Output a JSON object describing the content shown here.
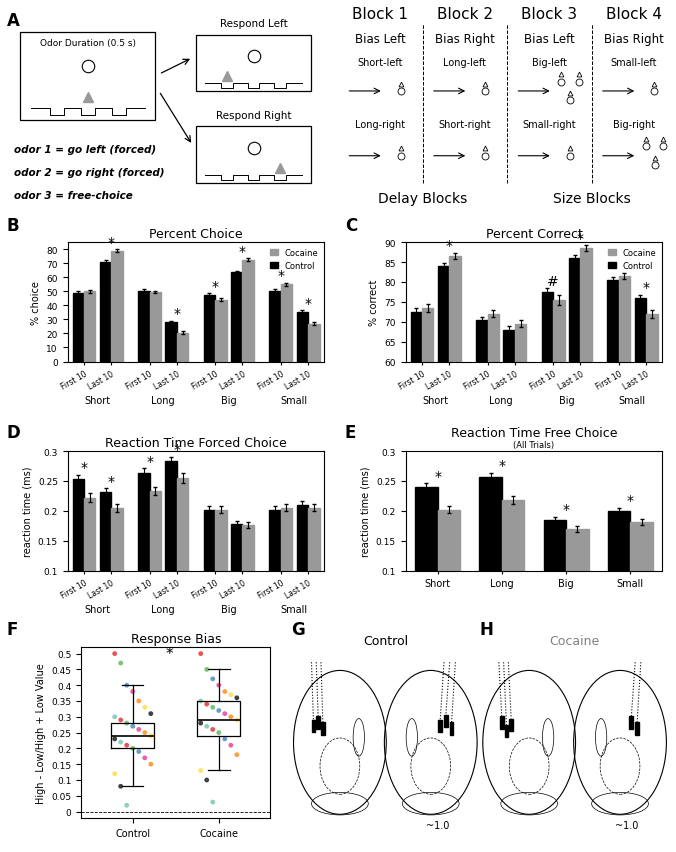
{
  "chart_data": [
    {
      "type": "bar",
      "panel_label": "B",
      "title": "Percent Choice",
      "y_label": "% choice",
      "categories": [
        "Short",
        "Long",
        "Big",
        "Small"
      ],
      "subcategories": [
        "First 10",
        "Last 10"
      ],
      "series": [
        {
          "name": "Control",
          "color": "#000000",
          "values": [
            [
              49,
              71
            ],
            [
              50.5,
              28
            ],
            [
              47.5,
              63.5
            ],
            [
              50.5,
              35.5
            ]
          ],
          "errors": [
            [
              1.2,
              1.0
            ],
            [
              1.0,
              1.0
            ],
            [
              1.0,
              1.0
            ],
            [
              1.2,
              1.0
            ]
          ]
        },
        {
          "name": "Cocaine",
          "color": "#999999",
          "values": [
            [
              50,
              79
            ],
            [
              49.5,
              20.5
            ],
            [
              44,
              72.5
            ],
            [
              55,
              27
            ]
          ],
          "errors": [
            [
              1.2,
              1.0
            ],
            [
              1.0,
              1.0
            ],
            [
              1.0,
              1.0
            ],
            [
              1.2,
              1.0
            ]
          ]
        }
      ],
      "ylim": [
        0,
        85
      ],
      "yticks": [
        0,
        10,
        20,
        30,
        40,
        50,
        60,
        70,
        80
      ],
      "legend": "upper right",
      "annotations": [
        {
          "category": "Short",
          "period": "Last 10",
          "text": "*"
        },
        {
          "category": "Long",
          "period": "Last 10",
          "text": "*"
        },
        {
          "category": "Big",
          "period": "First 10",
          "text": "*"
        },
        {
          "category": "Big",
          "period": "Last 10",
          "text": "*"
        },
        {
          "category": "Small",
          "period": "First 10",
          "text": "*"
        },
        {
          "category": "Small",
          "period": "Last 10",
          "text": "*"
        }
      ]
    },
    {
      "type": "bar",
      "panel_label": "C",
      "title": "Percent Correct",
      "y_label": "% correct",
      "categories": [
        "Short",
        "Long",
        "Big",
        "Small"
      ],
      "subcategories": [
        "First 10",
        "Last 10"
      ],
      "series": [
        {
          "name": "Control",
          "color": "#000000",
          "values": [
            [
              72.5,
              84
            ],
            [
              70.5,
              68
            ],
            [
              77.5,
              86
            ],
            [
              80.5,
              76
            ]
          ],
          "errors": [
            [
              0.9,
              0.8
            ],
            [
              0.8,
              0.8
            ],
            [
              0.9,
              0.7
            ],
            [
              0.8,
              0.8
            ]
          ]
        },
        {
          "name": "Cocaine",
          "color": "#999999",
          "values": [
            [
              73.5,
              86.5
            ],
            [
              72,
              69.5
            ],
            [
              75.5,
              88.5
            ],
            [
              81.5,
              72
            ]
          ],
          "errors": [
            [
              1.0,
              0.8
            ],
            [
              0.9,
              0.9
            ],
            [
              1.2,
              0.7
            ],
            [
              0.8,
              1.0
            ]
          ]
        }
      ],
      "ylim": [
        60,
        90
      ],
      "yticks": [
        60,
        65,
        70,
        75,
        80,
        85,
        90
      ],
      "legend": "upper right",
      "annotations": [
        {
          "category": "Short",
          "period": "Last 10",
          "text": "*"
        },
        {
          "category": "Big",
          "period": "First 10",
          "text": "#"
        },
        {
          "category": "Big",
          "period": "Last 10",
          "text": "*"
        },
        {
          "category": "Small",
          "period": "Last 10",
          "text": "*"
        }
      ]
    },
    {
      "type": "bar",
      "panel_label": "D",
      "title": "Reaction Time Forced Choice",
      "y_label": "reaction time (ms)",
      "categories": [
        "Short",
        "Long",
        "Big",
        "Small"
      ],
      "subcategories": [
        "First 10",
        "Last 10"
      ],
      "series": [
        {
          "name": "Control",
          "color": "#000000",
          "values": [
            [
              0.253,
              0.231
            ],
            [
              0.264,
              0.283
            ],
            [
              0.202,
              0.178
            ],
            [
              0.202,
              0.21
            ]
          ],
          "errors": [
            [
              0.007,
              0.007
            ],
            [
              0.007,
              0.007
            ],
            [
              0.006,
              0.005
            ],
            [
              0.006,
              0.006
            ]
          ]
        },
        {
          "name": "Cocaine",
          "color": "#999999",
          "values": [
            [
              0.222,
              0.205
            ],
            [
              0.233,
              0.255
            ],
            [
              0.202,
              0.176
            ],
            [
              0.205,
              0.205
            ]
          ],
          "errors": [
            [
              0.007,
              0.007
            ],
            [
              0.007,
              0.008
            ],
            [
              0.006,
              0.005
            ],
            [
              0.006,
              0.006
            ]
          ]
        }
      ],
      "ylim": [
        0.1,
        0.3
      ],
      "yticks": [
        0.1,
        0.15,
        0.2,
        0.25,
        0.3
      ],
      "annotations": [
        {
          "category": "Short",
          "period": "First 10",
          "text": "*"
        },
        {
          "category": "Short",
          "period": "Last 10",
          "text": "*"
        },
        {
          "category": "Long",
          "period": "First 10",
          "text": "*"
        },
        {
          "category": "Long",
          "period": "Last 10",
          "text": "*"
        }
      ]
    },
    {
      "type": "bar",
      "panel_label": "E",
      "title": "Reaction Time Free Choice",
      "subtitle": "(All Trials)",
      "y_label": "reaction time (ms)",
      "categories": [
        "Short",
        "Long",
        "Big",
        "Small"
      ],
      "series": [
        {
          "name": "Control",
          "color": "#000000",
          "values": [
            0.24,
            0.257,
            0.185,
            0.2
          ],
          "errors": [
            0.006,
            0.007,
            0.005,
            0.005
          ]
        },
        {
          "name": "Cocaine",
          "color": "#999999",
          "values": [
            0.202,
            0.218,
            0.169,
            0.181
          ],
          "errors": [
            0.006,
            0.007,
            0.005,
            0.005
          ]
        }
      ],
      "ylim": [
        0.1,
        0.3
      ],
      "yticks": [
        0.1,
        0.15,
        0.2,
        0.25,
        0.3
      ],
      "annotations": [
        {
          "category": "Short",
          "text": "*"
        },
        {
          "category": "Long",
          "text": "*"
        },
        {
          "category": "Big",
          "text": "*"
        },
        {
          "category": "Small",
          "text": "*"
        }
      ]
    },
    {
      "type": "box",
      "panel_label": "F",
      "title": "Response Bias",
      "y_label": "High - Low/High + Low Value",
      "categories": [
        "Control",
        "Cocaine"
      ],
      "boxes": [
        {
          "median": 0.24,
          "q1": 0.2,
          "q3": 0.28,
          "whisker_low": 0.08,
          "whisker_high": 0.4
        },
        {
          "median": 0.29,
          "q1": 0.24,
          "q3": 0.35,
          "whisker_low": 0.13,
          "whisker_high": 0.45
        }
      ],
      "points": [
        [
          0.5,
          0.47,
          0.4,
          0.38,
          0.35,
          0.33,
          0.31,
          0.3,
          0.29,
          0.28,
          0.27,
          0.26,
          0.25,
          0.24,
          0.23,
          0.22,
          0.21,
          0.2,
          0.19,
          0.17,
          0.15,
          0.12,
          0.08,
          0.02
        ],
        [
          0.5,
          0.45,
          0.42,
          0.4,
          0.38,
          0.37,
          0.36,
          0.35,
          0.34,
          0.33,
          0.32,
          0.31,
          0.3,
          0.29,
          0.28,
          0.27,
          0.26,
          0.25,
          0.23,
          0.21,
          0.18,
          0.13,
          0.1,
          0.03
        ]
      ],
      "point_colors": [
        [
          "#e41a1c",
          "#4daf4a",
          "#377eb8",
          "#e7298a",
          "#ff7f00",
          "#ffd92f",
          "#000000",
          "#66c2a5",
          "#e41a1c",
          "#4daf4a",
          "#377eb8",
          "#e7298a",
          "#ff7f00",
          "#ffd92f",
          "#000000",
          "#66c2a5",
          "#e41a1c",
          "#4daf4a",
          "#377eb8",
          "#e7298a",
          "#ff7f00",
          "#ffd92f",
          "#000000",
          "#66c2a5"
        ],
        [
          "#e41a1c",
          "#4daf4a",
          "#377eb8",
          "#e7298a",
          "#ff7f00",
          "#ffd92f",
          "#000000",
          "#66c2a5",
          "#e41a1c",
          "#4daf4a",
          "#377eb8",
          "#e7298a",
          "#ff7f00",
          "#ffd92f",
          "#000000",
          "#66c2a5",
          "#e41a1c",
          "#4daf4a",
          "#377eb8",
          "#e7298a",
          "#ff7f00",
          "#ffd92f",
          "#000000",
          "#66c2a5"
        ]
      ],
      "reference_line": 0,
      "ylim": [
        -0.02,
        0.52
      ],
      "yticks": [
        0,
        0.05,
        0.1,
        0.15,
        0.2,
        0.25,
        0.3,
        0.35,
        0.4,
        0.45,
        0.5
      ],
      "annotations": [
        {
          "category": "Control",
          "text": "*"
        }
      ]
    }
  ],
  "diagram": {
    "A": {
      "panel_label": "A",
      "odor_box": "Odor Duration (0.5 s)",
      "odor_rules": [
        "odor 1 = go left (forced)",
        "odor 2 = go right (forced)",
        "odor 3 = free-choice"
      ],
      "responses": [
        "Respond Left",
        "Respond Right"
      ],
      "blocks": [
        {
          "name": "Block 1",
          "bias": "Bias Left",
          "left": "Short-left",
          "right": "Long-right",
          "left_drops": 1,
          "right_drops": 1
        },
        {
          "name": "Block 2",
          "bias": "Bias Right",
          "left": "Long-left",
          "right": "Short-right",
          "left_drops": 1,
          "right_drops": 1
        },
        {
          "name": "Block 3",
          "bias": "Bias Left",
          "left": "Big-left",
          "right": "Small-right",
          "left_drops": 3,
          "right_drops": 1
        },
        {
          "name": "Block 4",
          "bias": "Bias Right",
          "left": "Small-left",
          "right": "Big-right",
          "left_drops": 1,
          "right_drops": 3
        }
      ],
      "block_groups": [
        "Delay Blocks",
        "Size Blocks"
      ]
    },
    "G": {
      "panel_label": "G",
      "title": "Control",
      "note": "~1.0"
    },
    "H": {
      "panel_label": "H",
      "title": "Cocaine",
      "note": "~1.0"
    }
  }
}
